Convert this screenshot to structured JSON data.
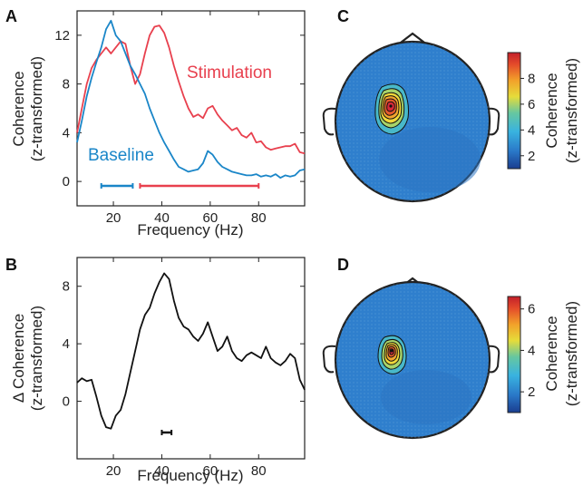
{
  "panels": {
    "A": {
      "letter": "A"
    },
    "B": {
      "letter": "B"
    },
    "C": {
      "letter": "C"
    },
    "D": {
      "letter": "D"
    }
  },
  "colors": {
    "stimulation": "#e8404e",
    "baseline": "#1a86c8",
    "difference": "#111111"
  },
  "chart_data": [
    {
      "id": "A",
      "type": "line",
      "xlabel": "Frequency (Hz)",
      "ylabel_line1": "Coherence",
      "ylabel_line2": "(z-transformed)",
      "xlim": [
        5,
        99
      ],
      "ylim": [
        -2,
        14
      ],
      "xticks": [
        20,
        40,
        60,
        80
      ],
      "yticks": [
        0,
        4,
        8,
        12
      ],
      "series": [
        {
          "name": "Stimulation",
          "color": "#e8404e",
          "x": [
            5,
            7,
            9,
            11,
            13,
            15,
            17,
            19,
            21,
            23,
            25,
            27,
            29,
            31,
            33,
            35,
            37,
            39,
            41,
            43,
            45,
            47,
            49,
            51,
            53,
            55,
            57,
            59,
            61,
            63,
            65,
            67,
            69,
            71,
            73,
            75,
            77,
            79,
            81,
            83,
            85,
            87,
            89,
            91,
            93,
            95,
            97,
            99
          ],
          "values": [
            4,
            6,
            8,
            9.3,
            10,
            10.5,
            11,
            10.5,
            11,
            11.5,
            11.3,
            9.5,
            8,
            8.8,
            10.5,
            12,
            12.7,
            12.8,
            12.2,
            11,
            9.5,
            8.2,
            7,
            6,
            5.3,
            5.5,
            5.2,
            6,
            6.2,
            5.5,
            5,
            4.6,
            4.2,
            4.4,
            3.8,
            3.6,
            4,
            3.2,
            3.3,
            2.8,
            2.6,
            2.7,
            2.8,
            2.9,
            2.9,
            3.1,
            2.4,
            2.3
          ]
        },
        {
          "name": "Baseline",
          "color": "#1a86c8",
          "x": [
            5,
            7,
            9,
            11,
            13,
            15,
            17,
            19,
            21,
            23,
            25,
            27,
            29,
            31,
            33,
            35,
            37,
            39,
            41,
            43,
            45,
            47,
            49,
            51,
            53,
            55,
            57,
            59,
            61,
            63,
            65,
            67,
            69,
            71,
            73,
            75,
            77,
            79,
            81,
            83,
            85,
            87,
            89,
            91,
            93,
            95,
            97,
            99
          ],
          "values": [
            3.2,
            5,
            7,
            8.5,
            9.8,
            11,
            12.5,
            13.2,
            12,
            11.5,
            10.5,
            9.5,
            8.8,
            8,
            7.2,
            6,
            5,
            4,
            3.2,
            2.5,
            1.8,
            1.2,
            1,
            0.8,
            0.9,
            1,
            1.5,
            2.5,
            2.2,
            1.6,
            1.2,
            1,
            0.8,
            0.7,
            0.6,
            0.5,
            0.5,
            0.6,
            0.4,
            0.5,
            0.4,
            0.6,
            0.3,
            0.5,
            0.4,
            0.5,
            0.9,
            1
          ]
        }
      ],
      "annotations": {
        "stimulation_label": "Stimulation",
        "baseline_label": "Baseline"
      },
      "significance_bars": [
        {
          "series": "Baseline",
          "x_range": [
            15,
            28
          ]
        },
        {
          "series": "Stimulation",
          "x_range": [
            31,
            80
          ]
        }
      ]
    },
    {
      "id": "B",
      "type": "line",
      "xlabel": "Frequency (Hz)",
      "ylabel_line1": "Δ Coherence",
      "ylabel_line2": "(z-transformed)",
      "xlim": [
        5,
        99
      ],
      "ylim": [
        -4,
        10
      ],
      "xticks": [
        20,
        40,
        60,
        80
      ],
      "yticks": [
        0,
        4,
        8
      ],
      "series": [
        {
          "name": "",
          "color": "#111111",
          "x": [
            5,
            7,
            9,
            11,
            13,
            15,
            17,
            19,
            21,
            23,
            25,
            27,
            29,
            31,
            33,
            35,
            37,
            39,
            41,
            43,
            45,
            47,
            49,
            51,
            53,
            55,
            57,
            59,
            61,
            63,
            65,
            67,
            69,
            71,
            73,
            75,
            77,
            79,
            81,
            83,
            85,
            87,
            89,
            91,
            93,
            95,
            97,
            99
          ],
          "values": [
            1.3,
            1.6,
            1.4,
            1.5,
            0.3,
            -1,
            -1.8,
            -1.9,
            -1,
            -0.6,
            0.5,
            2,
            3.5,
            5,
            6,
            6.5,
            7.5,
            8.3,
            8.9,
            8.5,
            7,
            5.8,
            5.2,
            5,
            4.5,
            4.2,
            4.7,
            5.5,
            4.5,
            3.5,
            3.8,
            4.5,
            3.5,
            3,
            2.8,
            3.2,
            3.4,
            3.2,
            3,
            3.8,
            3,
            2.7,
            2.5,
            2.8,
            3.3,
            3,
            1.5,
            0.8
          ]
        }
      ],
      "significance_bars": [
        {
          "x_range": [
            40,
            44
          ]
        }
      ]
    },
    {
      "id": "C",
      "type": "heatmap",
      "subtype": "scalp-topography",
      "colorbar_label_line1": "Coherence",
      "colorbar_label_line2": "(z-transformed)",
      "colorbar_range": [
        1,
        10
      ],
      "colorbar_ticks": [
        2,
        4,
        6,
        8
      ],
      "peak_value": 10,
      "colormap": [
        "#1a3d8f",
        "#2a78c8",
        "#39b3e0",
        "#66c7a0",
        "#e6dc3a",
        "#f2a12a",
        "#e44a2a",
        "#c31f2a"
      ]
    },
    {
      "id": "D",
      "type": "heatmap",
      "subtype": "scalp-topography",
      "colorbar_label_line1": "Coherence",
      "colorbar_label_line2": "(z-transformed)",
      "colorbar_range": [
        1,
        6.6
      ],
      "colorbar_ticks": [
        2,
        4,
        6
      ],
      "peak_value": 6.6,
      "colormap": [
        "#1a3d8f",
        "#2a78c8",
        "#39b3e0",
        "#66c7a0",
        "#e6dc3a",
        "#f2a12a",
        "#e44a2a",
        "#c31f2a"
      ]
    }
  ]
}
